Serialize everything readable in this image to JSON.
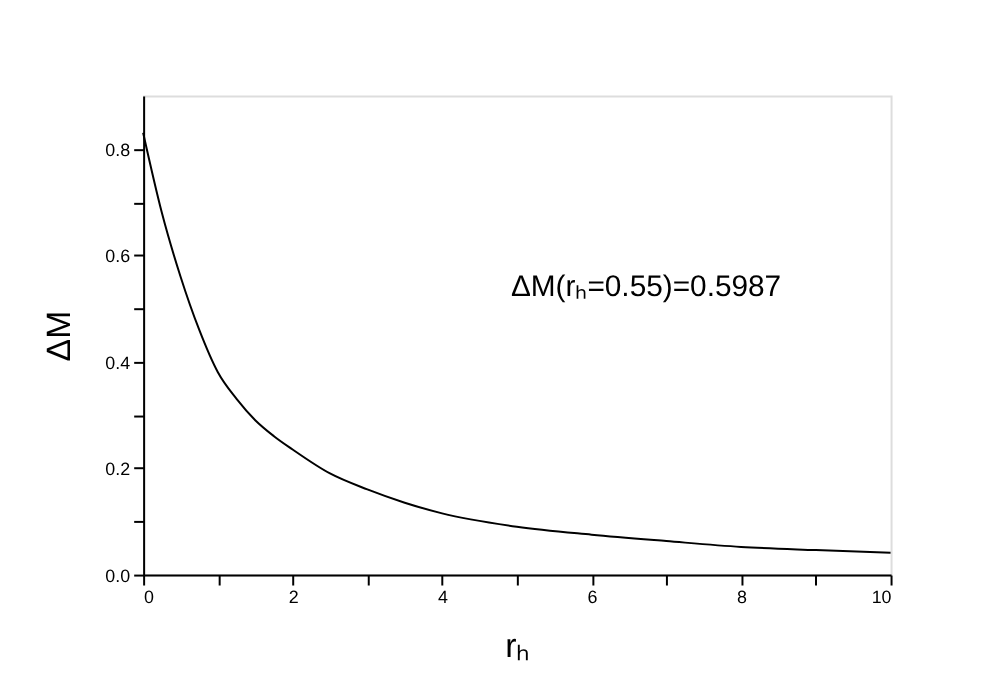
{
  "chart_data": {
    "type": "line",
    "xlabel": "rₕ",
    "ylabel": "ΔM",
    "annotations": [
      "ΔM(rₕ=0.55)=0.5987"
    ],
    "x": [
      0,
      0.25,
      0.5,
      0.75,
      1,
      1.25,
      1.5,
      1.75,
      2,
      2.5,
      3,
      3.5,
      4,
      5,
      6,
      7,
      8,
      9,
      10
    ],
    "series": [
      {
        "color": "#000000",
        "values": [
          0.83,
          0.68,
          0.56,
          0.46,
          0.38,
          0.33,
          0.29,
          0.26,
          0.235,
          0.19,
          0.16,
          0.135,
          0.115,
          0.09,
          0.075,
          0.063,
          0.052,
          0.046,
          0.041
        ]
      }
    ],
    "xlim": [
      0,
      10
    ],
    "ylim": [
      0,
      0.9
    ],
    "xticks": [
      0,
      {
        "value": 1,
        "label": null
      },
      2,
      {
        "value": 3,
        "label": null
      },
      4,
      {
        "value": 5,
        "label": null
      },
      6,
      {
        "value": 7,
        "label": null
      },
      8,
      {
        "value": 9,
        "label": null
      },
      10
    ],
    "yticks": [
      "0.0",
      {
        "value": 0.1,
        "label": null
      },
      0.2,
      {
        "value": 0.3,
        "label": null
      },
      0.4,
      {
        "value": 0.5,
        "label": null
      },
      0.6,
      {
        "value": 0.7,
        "label": null
      },
      0.8
    ],
    "grid": false,
    "marker": "none",
    "line_style": "solid"
  }
}
